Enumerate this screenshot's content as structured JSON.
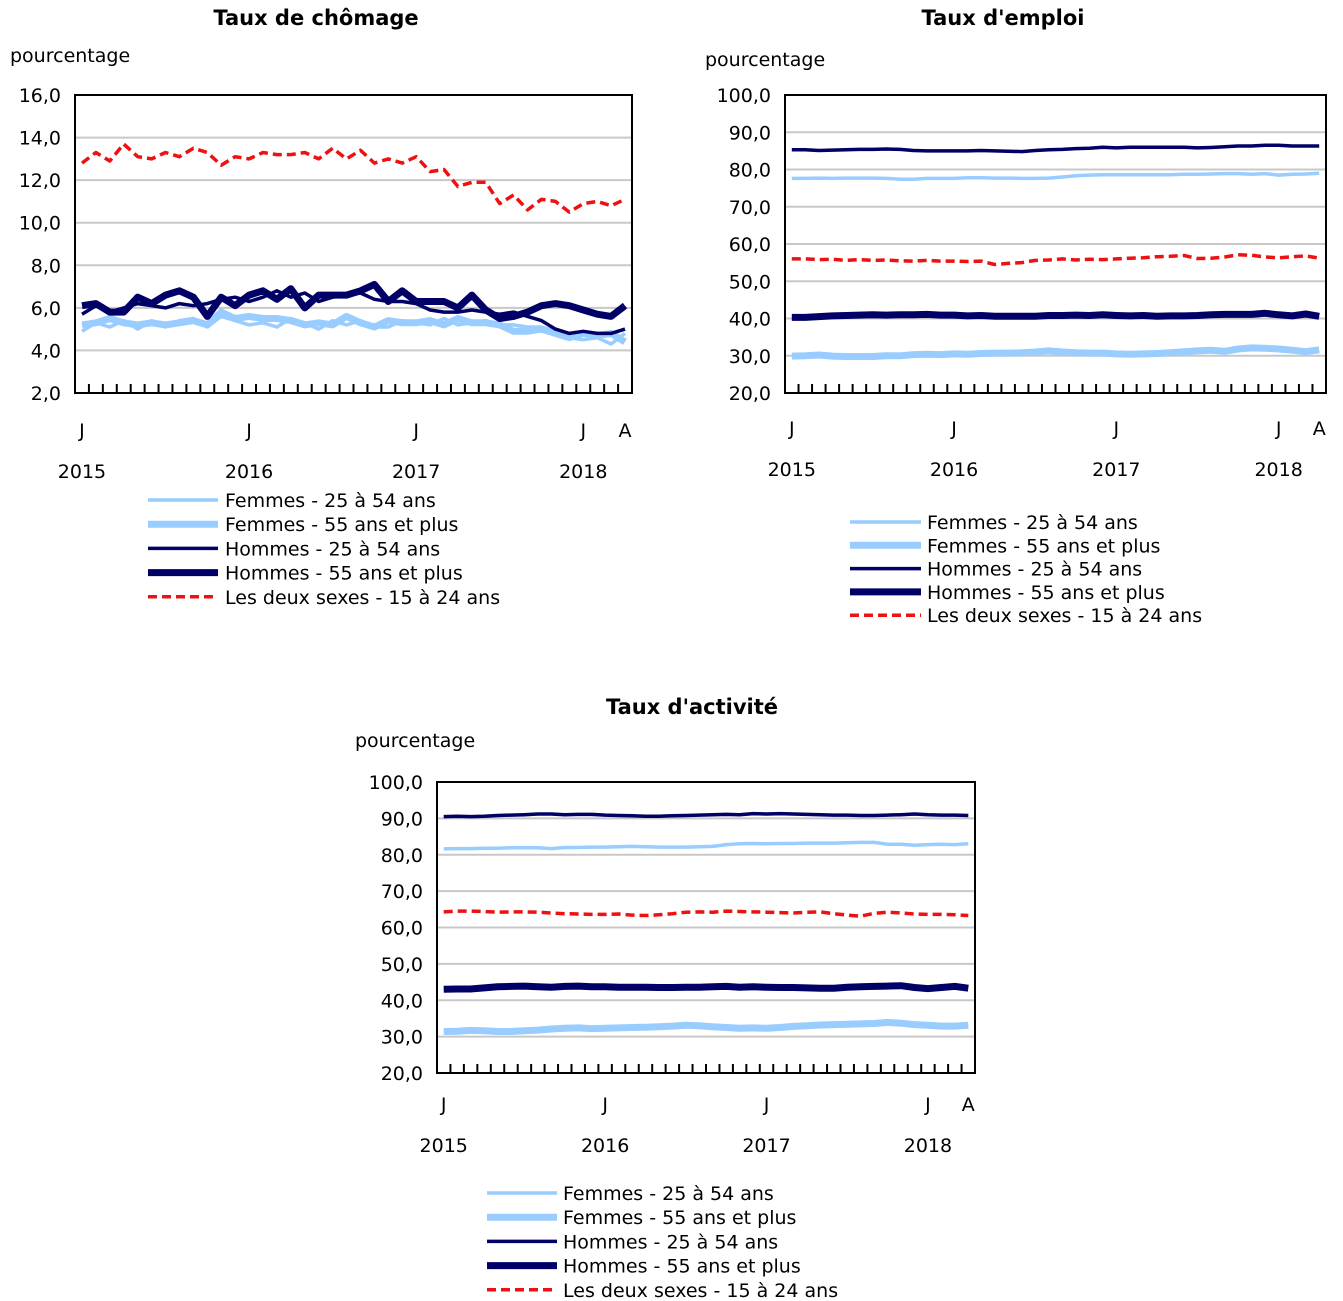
{
  "chart_data": [
    {
      "id": "chomage",
      "type": "line",
      "title": "Taux de chômage",
      "ylabel": "pourcentage",
      "ylim": [
        2.0,
        16.0
      ],
      "ystep": 2.0,
      "y_tick_labels": [
        "2,0",
        "4,0",
        "6,0",
        "8,0",
        "10,0",
        "12,0",
        "14,0",
        "16,0"
      ],
      "month_labels": [
        {
          "index": 0,
          "label": "J"
        },
        {
          "index": 12,
          "label": "J"
        },
        {
          "index": 24,
          "label": "J"
        },
        {
          "index": 36,
          "label": "J"
        },
        {
          "index": 39,
          "label": "A"
        }
      ],
      "year_labels": [
        {
          "index": 0,
          "label": "2015"
        },
        {
          "index": 12,
          "label": "2016"
        },
        {
          "index": 24,
          "label": "2017"
        },
        {
          "index": 36,
          "label": "2018"
        }
      ],
      "x": [
        "2015-01",
        "2015-02",
        "2015-03",
        "2015-04",
        "2015-05",
        "2015-06",
        "2015-07",
        "2015-08",
        "2015-09",
        "2015-10",
        "2015-11",
        "2015-12",
        "2016-01",
        "2016-02",
        "2016-03",
        "2016-04",
        "2016-05",
        "2016-06",
        "2016-07",
        "2016-08",
        "2016-09",
        "2016-10",
        "2016-11",
        "2016-12",
        "2017-01",
        "2017-02",
        "2017-03",
        "2017-04",
        "2017-05",
        "2017-06",
        "2017-07",
        "2017-08",
        "2017-09",
        "2017-10",
        "2017-11",
        "2017-12",
        "2018-01",
        "2018-02",
        "2018-03",
        "2018-04"
      ],
      "grid": true,
      "legend_position": "bottom",
      "series": [
        {
          "name": "Femmes - 25 à 54 ans",
          "color": "#99ccff",
          "style": "solid-thin",
          "values": [
            4.9,
            5.3,
            5.1,
            5.4,
            5.0,
            5.4,
            5.1,
            5.4,
            5.5,
            5.1,
            5.6,
            5.4,
            5.2,
            5.3,
            5.1,
            5.5,
            5.3,
            5.0,
            5.4,
            5.2,
            5.4,
            5.1,
            5.1,
            5.4,
            5.3,
            5.2,
            5.5,
            5.2,
            5.3,
            5.4,
            5.2,
            5.2,
            5.1,
            5.1,
            4.9,
            4.6,
            4.5,
            4.6,
            4.3,
            4.8
          ]
        },
        {
          "name": "Femmes - 55 ans et plus",
          "color": "#99ccff",
          "style": "solid-thick",
          "values": [
            5.2,
            5.3,
            5.5,
            5.3,
            5.2,
            5.3,
            5.2,
            5.3,
            5.4,
            5.2,
            5.8,
            5.5,
            5.6,
            5.5,
            5.5,
            5.4,
            5.2,
            5.3,
            5.2,
            5.6,
            5.3,
            5.1,
            5.4,
            5.3,
            5.3,
            5.4,
            5.2,
            5.5,
            5.3,
            5.3,
            5.2,
            4.9,
            4.9,
            5.0,
            4.8,
            4.6,
            4.8,
            4.7,
            4.8,
            4.4
          ]
        },
        {
          "name": "Hommes - 25 à 54 ans",
          "color": "#000066",
          "style": "solid-thin",
          "values": [
            5.7,
            6.1,
            5.8,
            6.0,
            6.2,
            6.1,
            6.0,
            6.2,
            6.1,
            6.2,
            6.4,
            6.5,
            6.3,
            6.5,
            6.8,
            6.5,
            6.7,
            6.3,
            6.5,
            6.6,
            6.7,
            6.4,
            6.3,
            6.3,
            6.2,
            5.9,
            5.8,
            5.8,
            5.9,
            5.8,
            5.7,
            5.8,
            5.6,
            5.4,
            5.0,
            4.8,
            4.9,
            4.8,
            4.8,
            5.0
          ]
        },
        {
          "name": "Hommes - 55 ans et plus",
          "color": "#000066",
          "style": "solid-thick",
          "values": [
            6.1,
            6.2,
            5.8,
            5.8,
            6.5,
            6.2,
            6.6,
            6.8,
            6.5,
            5.6,
            6.5,
            6.1,
            6.6,
            6.8,
            6.4,
            6.9,
            6.0,
            6.6,
            6.6,
            6.6,
            6.8,
            7.1,
            6.3,
            6.8,
            6.3,
            6.3,
            6.3,
            6.0,
            6.6,
            5.9,
            5.5,
            5.6,
            5.8,
            6.1,
            6.2,
            6.1,
            5.9,
            5.7,
            5.6,
            6.1
          ]
        },
        {
          "name": "Les deux sexes - 15 à 24 ans",
          "color": "#ee1111",
          "style": "dashed",
          "values": [
            12.8,
            13.3,
            12.9,
            13.7,
            13.1,
            13.0,
            13.3,
            13.1,
            13.5,
            13.3,
            12.7,
            13.1,
            13.0,
            13.3,
            13.2,
            13.2,
            13.3,
            13.0,
            13.5,
            13.0,
            13.4,
            12.8,
            13.0,
            12.8,
            13.1,
            12.4,
            12.5,
            11.7,
            11.9,
            11.9,
            10.9,
            11.3,
            10.6,
            11.1,
            11.0,
            10.5,
            10.9,
            11.0,
            10.8,
            11.1
          ]
        }
      ]
    },
    {
      "id": "emploi",
      "type": "line",
      "title": "Taux d'emploi",
      "ylabel": "pourcentage",
      "ylim": [
        20.0,
        100.0
      ],
      "ystep": 10.0,
      "y_tick_labels": [
        "20,0",
        "30,0",
        "40,0",
        "50,0",
        "60,0",
        "70,0",
        "80,0",
        "90,0",
        "100,0"
      ],
      "month_labels": [
        {
          "index": 0,
          "label": "J"
        },
        {
          "index": 12,
          "label": "J"
        },
        {
          "index": 24,
          "label": "J"
        },
        {
          "index": 36,
          "label": "J"
        },
        {
          "index": 39,
          "label": "A"
        }
      ],
      "year_labels": [
        {
          "index": 0,
          "label": "2015"
        },
        {
          "index": 12,
          "label": "2016"
        },
        {
          "index": 24,
          "label": "2017"
        },
        {
          "index": 36,
          "label": "2018"
        }
      ],
      "x": [
        "2015-01",
        "2015-02",
        "2015-03",
        "2015-04",
        "2015-05",
        "2015-06",
        "2015-07",
        "2015-08",
        "2015-09",
        "2015-10",
        "2015-11",
        "2015-12",
        "2016-01",
        "2016-02",
        "2016-03",
        "2016-04",
        "2016-05",
        "2016-06",
        "2016-07",
        "2016-08",
        "2016-09",
        "2016-10",
        "2016-11",
        "2016-12",
        "2017-01",
        "2017-02",
        "2017-03",
        "2017-04",
        "2017-05",
        "2017-06",
        "2017-07",
        "2017-08",
        "2017-09",
        "2017-10",
        "2017-11",
        "2017-12",
        "2018-01",
        "2018-02",
        "2018-03",
        "2018-04"
      ],
      "grid": true,
      "legend_position": "bottom",
      "series": [
        {
          "name": "Femmes - 25 à 54 ans",
          "color": "#99ccff",
          "style": "solid-thin",
          "values": [
            77.6,
            77.6,
            77.7,
            77.6,
            77.7,
            77.7,
            77.7,
            77.6,
            77.4,
            77.4,
            77.6,
            77.6,
            77.6,
            77.8,
            77.8,
            77.7,
            77.7,
            77.6,
            77.6,
            77.7,
            78.0,
            78.3,
            78.5,
            78.6,
            78.6,
            78.6,
            78.6,
            78.6,
            78.6,
            78.7,
            78.7,
            78.8,
            78.9,
            78.9,
            78.7,
            78.9,
            78.5,
            78.7,
            78.8,
            79.0
          ]
        },
        {
          "name": "Femmes - 55 ans et plus",
          "color": "#99ccff",
          "style": "solid-thick",
          "values": [
            29.9,
            30.0,
            30.2,
            29.9,
            29.8,
            29.8,
            29.8,
            30.0,
            30.0,
            30.3,
            30.4,
            30.3,
            30.5,
            30.4,
            30.6,
            30.7,
            30.7,
            30.8,
            31.0,
            31.3,
            31.0,
            30.8,
            30.7,
            30.7,
            30.5,
            30.4,
            30.5,
            30.6,
            30.8,
            31.1,
            31.3,
            31.5,
            31.2,
            31.8,
            32.1,
            32.0,
            31.8,
            31.5,
            31.1,
            31.6
          ]
        },
        {
          "name": "Hommes - 25 à 54 ans",
          "color": "#000066",
          "style": "solid-thin",
          "values": [
            85.3,
            85.3,
            85.1,
            85.2,
            85.3,
            85.4,
            85.4,
            85.5,
            85.4,
            85.1,
            85.0,
            85.0,
            85.0,
            85.0,
            85.1,
            85.0,
            84.9,
            84.8,
            85.1,
            85.3,
            85.4,
            85.6,
            85.7,
            86.0,
            85.8,
            86.0,
            86.0,
            86.0,
            86.0,
            86.0,
            85.8,
            85.9,
            86.1,
            86.3,
            86.3,
            86.5,
            86.5,
            86.3,
            86.3,
            86.3
          ]
        },
        {
          "name": "Hommes - 55 ans et plus",
          "color": "#000066",
          "style": "solid-thick",
          "values": [
            40.3,
            40.3,
            40.5,
            40.7,
            40.8,
            40.9,
            41.0,
            40.9,
            41.0,
            41.0,
            41.1,
            40.9,
            40.9,
            40.7,
            40.8,
            40.6,
            40.6,
            40.6,
            40.6,
            40.8,
            40.8,
            40.9,
            40.8,
            41.0,
            40.8,
            40.7,
            40.8,
            40.6,
            40.7,
            40.7,
            40.8,
            41.0,
            41.1,
            41.1,
            41.1,
            41.4,
            41.0,
            40.7,
            41.2,
            40.6
          ]
        },
        {
          "name": "Les deux sexes - 15 à 24 ans",
          "color": "#ee1111",
          "style": "dashed",
          "values": [
            56.0,
            56.0,
            55.8,
            55.9,
            55.6,
            55.8,
            55.6,
            55.7,
            55.5,
            55.4,
            55.6,
            55.4,
            55.4,
            55.3,
            55.4,
            54.5,
            54.8,
            55.0,
            55.6,
            55.7,
            56.0,
            55.7,
            55.9,
            55.8,
            56.0,
            56.2,
            56.3,
            56.6,
            56.7,
            56.9,
            56.1,
            56.2,
            56.5,
            57.1,
            57.0,
            56.5,
            56.3,
            56.6,
            56.8,
            56.2
          ]
        }
      ]
    },
    {
      "id": "activite",
      "type": "line",
      "title": "Taux d'activité",
      "ylabel": "pourcentage",
      "ylim": [
        20.0,
        100.0
      ],
      "ystep": 10.0,
      "y_tick_labels": [
        "20,0",
        "30,0",
        "40,0",
        "50,0",
        "60,0",
        "70,0",
        "80,0",
        "90,0",
        "100,0"
      ],
      "month_labels": [
        {
          "index": 0,
          "label": "J"
        },
        {
          "index": 12,
          "label": "J"
        },
        {
          "index": 24,
          "label": "J"
        },
        {
          "index": 36,
          "label": "J"
        },
        {
          "index": 39,
          "label": "A"
        }
      ],
      "year_labels": [
        {
          "index": 0,
          "label": "2015"
        },
        {
          "index": 12,
          "label": "2016"
        },
        {
          "index": 24,
          "label": "2017"
        },
        {
          "index": 36,
          "label": "2018"
        }
      ],
      "x": [
        "2015-01",
        "2015-02",
        "2015-03",
        "2015-04",
        "2015-05",
        "2015-06",
        "2015-07",
        "2015-08",
        "2015-09",
        "2015-10",
        "2015-11",
        "2015-12",
        "2016-01",
        "2016-02",
        "2016-03",
        "2016-04",
        "2016-05",
        "2016-06",
        "2016-07",
        "2016-08",
        "2016-09",
        "2016-10",
        "2016-11",
        "2016-12",
        "2017-01",
        "2017-02",
        "2017-03",
        "2017-04",
        "2017-05",
        "2017-06",
        "2017-07",
        "2017-08",
        "2017-09",
        "2017-10",
        "2017-11",
        "2017-12",
        "2018-01",
        "2018-02",
        "2018-03",
        "2018-04"
      ],
      "grid": true,
      "legend_position": "bottom",
      "series": [
        {
          "name": "Femmes - 25 à 54 ans",
          "color": "#99ccff",
          "style": "solid-thin",
          "values": [
            81.6,
            81.7,
            81.7,
            81.8,
            81.8,
            81.9,
            81.9,
            81.9,
            81.7,
            82.0,
            82.0,
            82.1,
            82.1,
            82.2,
            82.3,
            82.2,
            82.1,
            82.1,
            82.1,
            82.2,
            82.3,
            82.8,
            83.0,
            83.1,
            83.0,
            83.1,
            83.1,
            83.2,
            83.2,
            83.2,
            83.3,
            83.4,
            83.4,
            82.9,
            82.9,
            82.6,
            82.8,
            82.9,
            82.8,
            83.0
          ]
        },
        {
          "name": "Femmes - 55 ans et plus",
          "color": "#99ccff",
          "style": "solid-thick",
          "values": [
            31.4,
            31.5,
            31.7,
            31.6,
            31.4,
            31.4,
            31.6,
            31.8,
            32.1,
            32.3,
            32.4,
            32.2,
            32.3,
            32.4,
            32.5,
            32.6,
            32.7,
            32.9,
            33.1,
            33.0,
            32.7,
            32.5,
            32.3,
            32.4,
            32.3,
            32.5,
            32.8,
            33.0,
            33.2,
            33.3,
            33.4,
            33.5,
            33.6,
            33.9,
            33.7,
            33.3,
            33.1,
            32.9,
            32.9,
            33.1
          ]
        },
        {
          "name": "Hommes - 25 à 54 ans",
          "color": "#000066",
          "style": "solid-thin",
          "values": [
            90.5,
            90.6,
            90.5,
            90.6,
            90.8,
            90.9,
            91.0,
            91.2,
            91.2,
            91.0,
            91.1,
            91.1,
            90.9,
            90.8,
            90.7,
            90.6,
            90.6,
            90.7,
            90.8,
            90.9,
            91.0,
            91.1,
            91.0,
            91.3,
            91.2,
            91.3,
            91.2,
            91.1,
            91.0,
            90.9,
            90.9,
            90.8,
            90.8,
            90.9,
            91.0,
            91.2,
            91.0,
            90.9,
            90.9,
            90.8
          ]
        },
        {
          "name": "Hommes - 55 ans et plus",
          "color": "#000066",
          "style": "solid-thick",
          "values": [
            43.0,
            43.1,
            43.1,
            43.4,
            43.7,
            43.8,
            43.9,
            43.7,
            43.6,
            43.8,
            43.9,
            43.7,
            43.7,
            43.6,
            43.6,
            43.6,
            43.5,
            43.5,
            43.6,
            43.6,
            43.7,
            43.8,
            43.6,
            43.7,
            43.6,
            43.5,
            43.5,
            43.4,
            43.3,
            43.3,
            43.6,
            43.7,
            43.8,
            43.9,
            44.0,
            43.5,
            43.2,
            43.5,
            43.8,
            43.3
          ]
        },
        {
          "name": "Les deux sexes - 15 à 24 ans",
          "color": "#ee1111",
          "style": "dashed",
          "values": [
            64.3,
            64.5,
            64.5,
            64.4,
            64.2,
            64.3,
            64.3,
            64.2,
            64.0,
            63.8,
            63.7,
            63.6,
            63.6,
            63.7,
            63.4,
            63.3,
            63.5,
            63.8,
            64.2,
            64.3,
            64.2,
            64.5,
            64.4,
            64.3,
            64.2,
            64.1,
            64.0,
            64.2,
            64.3,
            63.8,
            63.4,
            63.1,
            63.9,
            64.2,
            64.0,
            63.7,
            63.6,
            63.6,
            63.5,
            63.3
          ]
        }
      ]
    }
  ]
}
